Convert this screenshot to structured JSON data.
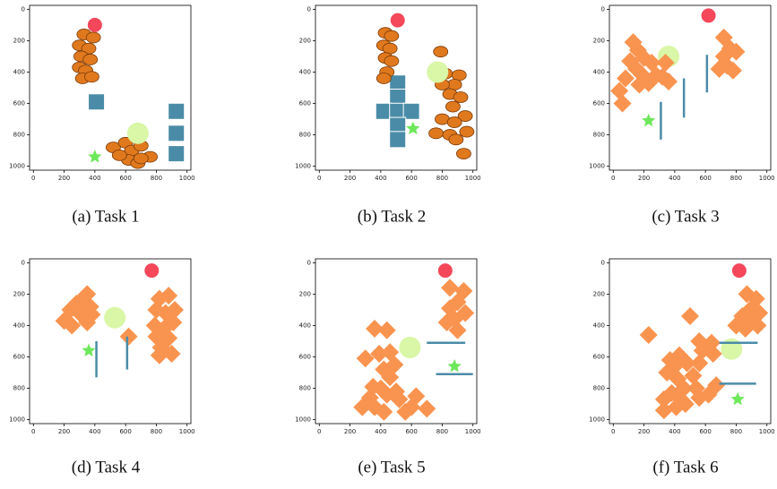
{
  "chart_data": [
    {
      "type": "scatter",
      "title": "(a) Task 1",
      "xlim": [
        -25,
        1025
      ],
      "ylim": [
        1025,
        -25
      ],
      "xticks": [
        0,
        200,
        400,
        600,
        800,
        1000
      ],
      "yticks": [
        0,
        200,
        400,
        600,
        800,
        1000
      ],
      "series": [
        {
          "marker": "bin",
          "color": "#e0791e",
          "x": [
            330,
            390,
            300,
            360,
            310,
            370,
            300,
            340,
            320,
            380,
            520,
            600,
            640,
            700,
            620,
            680,
            760,
            560,
            700
          ],
          "y": [
            160,
            180,
            230,
            250,
            300,
            320,
            370,
            390,
            440,
            430,
            880,
            850,
            900,
            870,
            960,
            980,
            940,
            930,
            950
          ]
        },
        {
          "marker": "square",
          "color": "#4a8ca8",
          "x": [
            410,
            930,
            930,
            930
          ],
          "y": [
            590,
            650,
            790,
            920
          ]
        },
        {
          "marker": "light",
          "color": "#d9f7a6",
          "x": [
            680
          ],
          "y": [
            790
          ]
        },
        {
          "marker": "circle",
          "color": "#f4475a",
          "x": [
            400
          ],
          "y": [
            100
          ]
        },
        {
          "marker": "star",
          "color": "#6ee85a",
          "x": [
            400
          ],
          "y": [
            940
          ]
        }
      ]
    },
    {
      "type": "scatter",
      "title": "(b) Task 2",
      "xlim": [
        -25,
        1025
      ],
      "ylim": [
        1025,
        -25
      ],
      "xticks": [
        0,
        200,
        400,
        600,
        800,
        1000
      ],
      "yticks": [
        0,
        200,
        400,
        600,
        800,
        1000
      ],
      "series": [
        {
          "marker": "square",
          "color": "#4a8ca8",
          "x": [
            510,
            510,
            420,
            510,
            600,
            510,
            510
          ],
          "y": [
            470,
            560,
            650,
            650,
            650,
            740,
            830
          ]
        },
        {
          "marker": "bin",
          "color": "#e0791e",
          "x": [
            430,
            470,
            420,
            460,
            430,
            470,
            440,
            420,
            790,
            820,
            910,
            880,
            800,
            850,
            920,
            870,
            950,
            800,
            880,
            960,
            760,
            850,
            890,
            940
          ],
          "y": [
            150,
            170,
            230,
            250,
            310,
            330,
            400,
            440,
            270,
            410,
            420,
            480,
            480,
            540,
            560,
            620,
            680,
            700,
            720,
            780,
            790,
            800,
            830,
            920
          ]
        },
        {
          "marker": "light",
          "color": "#d9f7a6",
          "x": [
            770
          ],
          "y": [
            400
          ]
        },
        {
          "marker": "circle",
          "color": "#f4475a",
          "x": [
            510
          ],
          "y": [
            70
          ]
        },
        {
          "marker": "star",
          "color": "#6ee85a",
          "x": [
            610
          ],
          "y": [
            760
          ]
        }
      ]
    },
    {
      "type": "scatter",
      "title": "(c) Task 3",
      "xlim": [
        -25,
        1025
      ],
      "ylim": [
        1025,
        -25
      ],
      "xticks": [
        0,
        200,
        400,
        600,
        800,
        1000
      ],
      "yticks": [
        0,
        200,
        400,
        600,
        800,
        1000
      ],
      "series": [
        {
          "marker": "light",
          "color": "#d9f7a6",
          "x": [
            360
          ],
          "y": [
            300
          ]
        },
        {
          "marker": "diamond",
          "color": "#f99450",
          "x": [
            130,
            160,
            110,
            200,
            250,
            150,
            80,
            190,
            280,
            230,
            320,
            360,
            40,
            170,
            60,
            340,
            720,
            760,
            720,
            800,
            690,
            740,
            780
          ],
          "y": [
            210,
            260,
            330,
            310,
            340,
            380,
            440,
            420,
            420,
            470,
            430,
            460,
            520,
            480,
            600,
            340,
            180,
            250,
            300,
            270,
            380,
            360,
            390
          ]
        },
        {
          "marker": "line",
          "color": "#4a8ca8",
          "x": [
            310,
            310
          ],
          "y": [
            590,
            830
          ]
        },
        {
          "marker": "line",
          "color": "#4a8ca8",
          "x": [
            460,
            460
          ],
          "y": [
            440,
            690
          ]
        },
        {
          "marker": "line",
          "color": "#4a8ca8",
          "x": [
            610,
            610
          ],
          "y": [
            290,
            530
          ]
        },
        {
          "marker": "circle",
          "color": "#f4475a",
          "x": [
            620
          ],
          "y": [
            40
          ]
        },
        {
          "marker": "star",
          "color": "#6ee85a",
          "x": [
            230
          ],
          "y": [
            710
          ]
        }
      ]
    },
    {
      "type": "scatter",
      "title": "(d) Task 4",
      "xlim": [
        -25,
        1025
      ],
      "ylim": [
        1025,
        -25
      ],
      "xticks": [
        0,
        200,
        400,
        600,
        800,
        1000
      ],
      "yticks": [
        0,
        200,
        400,
        600,
        800,
        1000
      ],
      "series": [
        {
          "marker": "light",
          "color": "#d9f7a6",
          "x": [
            530
          ],
          "y": [
            350
          ]
        },
        {
          "marker": "diamond",
          "color": "#f99450",
          "x": [
            200,
            240,
            280,
            320,
            350,
            370,
            300,
            250,
            350,
            380,
            620,
            820,
            880,
            800,
            860,
            920,
            790,
            850,
            910,
            800,
            880,
            830,
            900,
            820
          ],
          "y": [
            370,
            300,
            260,
            230,
            200,
            280,
            320,
            400,
            380,
            330,
            470,
            230,
            210,
            300,
            320,
            300,
            400,
            420,
            380,
            470,
            480,
            540,
            580,
            590
          ]
        },
        {
          "marker": "line",
          "color": "#4a8ca8",
          "x": [
            410,
            410
          ],
          "y": [
            500,
            730
          ]
        },
        {
          "marker": "line",
          "color": "#4a8ca8",
          "x": [
            610,
            610
          ],
          "y": [
            470,
            680
          ]
        },
        {
          "marker": "circle",
          "color": "#f4475a",
          "x": [
            770
          ],
          "y": [
            50
          ]
        },
        {
          "marker": "star",
          "color": "#6ee85a",
          "x": [
            360
          ],
          "y": [
            560
          ]
        }
      ]
    },
    {
      "type": "scatter",
      "title": "(e) Task 5",
      "xlim": [
        -25,
        1025
      ],
      "ylim": [
        1025,
        -25
      ],
      "xticks": [
        0,
        200,
        400,
        600,
        800,
        1000
      ],
      "yticks": [
        0,
        200,
        400,
        600,
        800,
        1000
      ],
      "series": [
        {
          "marker": "light",
          "color": "#d9f7a6",
          "x": [
            590
          ],
          "y": [
            540
          ]
        },
        {
          "marker": "diamond",
          "color": "#f99450",
          "x": [
            850,
            940,
            900,
            850,
            950,
            880,
            830,
            900,
            360,
            440,
            460,
            390,
            300,
            490,
            420,
            460,
            350,
            400,
            440,
            500,
            330,
            280,
            360,
            420,
            520,
            560,
            600,
            700,
            630
          ],
          "y": [
            160,
            180,
            250,
            290,
            320,
            360,
            380,
            430,
            420,
            430,
            570,
            580,
            610,
            650,
            680,
            730,
            790,
            800,
            840,
            820,
            860,
            920,
            920,
            950,
            870,
            950,
            920,
            930,
            850
          ]
        },
        {
          "marker": "line",
          "color": "#4a8ca8",
          "x": [
            700,
            950
          ],
          "y": [
            510,
            510
          ]
        },
        {
          "marker": "line",
          "color": "#4a8ca8",
          "x": [
            760,
            1000
          ],
          "y": [
            710,
            710
          ]
        },
        {
          "marker": "circle",
          "color": "#f4475a",
          "x": [
            820
          ],
          "y": [
            50
          ]
        },
        {
          "marker": "star",
          "color": "#6ee85a",
          "x": [
            880
          ],
          "y": [
            660
          ]
        }
      ]
    },
    {
      "type": "scatter",
      "title": "(f) Task 6",
      "xlim": [
        -25,
        1025
      ],
      "ylim": [
        1025,
        -25
      ],
      "xticks": [
        0,
        200,
        400,
        600,
        800,
        1000
      ],
      "yticks": [
        0,
        200,
        400,
        600,
        800,
        1000
      ],
      "series": [
        {
          "marker": "light",
          "color": "#d9f7a6",
          "x": [
            770
          ],
          "y": [
            550
          ]
        },
        {
          "marker": "diamond",
          "color": "#f99450",
          "x": [
            230,
            500,
            370,
            400,
            430,
            480,
            350,
            420,
            520,
            460,
            380,
            330,
            440,
            540,
            560,
            330,
            410,
            470,
            620,
            670,
            560,
            580,
            560,
            640,
            650,
            870,
            930,
            890,
            950,
            840,
            900,
            800,
            940,
            860
          ],
          "y": [
            460,
            340,
            620,
            660,
            590,
            640,
            700,
            740,
            720,
            800,
            830,
            870,
            870,
            800,
            860,
            940,
            920,
            900,
            840,
            780,
            640,
            560,
            500,
            510,
            580,
            200,
            230,
            300,
            320,
            340,
            380,
            400,
            400,
            420
          ]
        },
        {
          "marker": "line",
          "color": "#4a8ca8",
          "x": [
            690,
            940
          ],
          "y": [
            510,
            510
          ]
        },
        {
          "marker": "line",
          "color": "#4a8ca8",
          "x": [
            690,
            930
          ],
          "y": [
            770,
            770
          ]
        },
        {
          "marker": "circle",
          "color": "#f4475a",
          "x": [
            820
          ],
          "y": [
            50
          ]
        },
        {
          "marker": "star",
          "color": "#6ee85a",
          "x": [
            810
          ],
          "y": [
            870
          ]
        }
      ]
    }
  ]
}
